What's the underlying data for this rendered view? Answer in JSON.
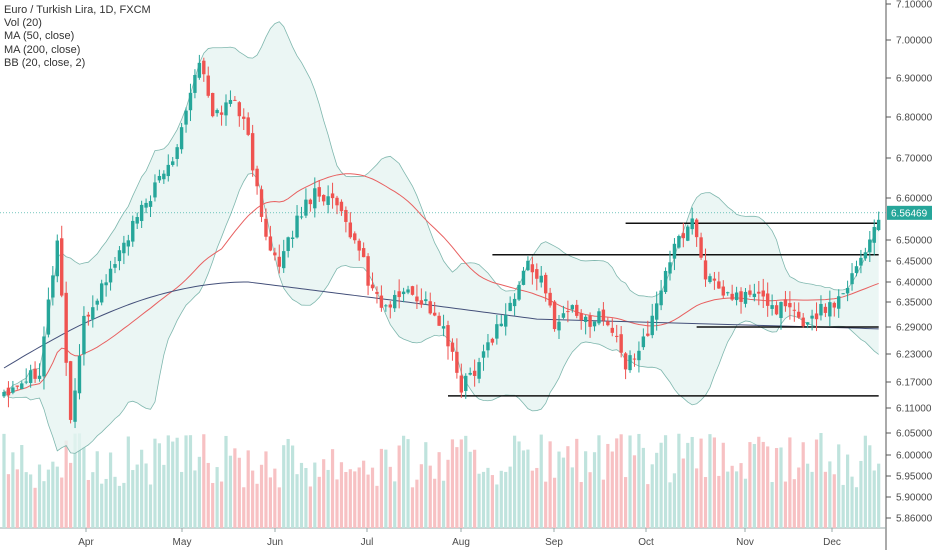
{
  "chart_data": {
    "type": "candlestick",
    "title": "Euro / Turkish Lira, 1D, FXCM",
    "indicators": [
      "Vol (20)",
      "MA (50, close)",
      "MA (200, close)",
      "BB (20, close, 2)"
    ],
    "y_ticks": [
      "7.10000",
      "7.00000",
      "6.90000",
      "6.80000",
      "6.70000",
      "6.60000",
      "6.50000",
      "6.45000",
      "6.40000",
      "6.35000",
      "6.29000",
      "6.23000",
      "6.17000",
      "6.11000",
      "6.05000",
      "6.00000",
      "5.95000",
      "5.90000",
      "5.86000"
    ],
    "x_ticks": [
      "Apr",
      "May",
      "Jun",
      "Jul",
      "Aug",
      "Sep",
      "Oct",
      "Nov",
      "Dec"
    ],
    "last_price": "6.56469",
    "colors": {
      "up": "#26a69a",
      "down": "#ef5350",
      "bb_fill": "#e6f4f1",
      "ma50": "#e86060",
      "ma200": "#44507a",
      "vol_up": "#bfe3dd",
      "vol_down": "#f7c1c3"
    },
    "horizontal_levels": [
      {
        "price": 6.54,
        "from_day": 140,
        "to_day": 197
      },
      {
        "price": 6.465,
        "from_day": 110,
        "to_day": 197
      },
      {
        "price": 6.29,
        "from_day": 156,
        "to_day": 197
      },
      {
        "price": 6.138,
        "from_day": 100,
        "to_day": 197
      }
    ],
    "anchors": [
      [
        0,
        6.15
      ],
      [
        8,
        6.2
      ],
      [
        12,
        6.5
      ],
      [
        15,
        6.08
      ],
      [
        18,
        6.3
      ],
      [
        25,
        6.45
      ],
      [
        30,
        6.55
      ],
      [
        38,
        6.7
      ],
      [
        44,
        6.95
      ],
      [
        47,
        6.8
      ],
      [
        52,
        6.85
      ],
      [
        55,
        6.75
      ],
      [
        58,
        6.55
      ],
      [
        62,
        6.43
      ],
      [
        66,
        6.55
      ],
      [
        70,
        6.62
      ],
      [
        75,
        6.58
      ],
      [
        78,
        6.5
      ],
      [
        80,
        6.49
      ],
      [
        82,
        6.4
      ],
      [
        86,
        6.33
      ],
      [
        90,
        6.38
      ],
      [
        95,
        6.35
      ],
      [
        99,
        6.28
      ],
      [
        103,
        6.16
      ],
      [
        106,
        6.2
      ],
      [
        110,
        6.27
      ],
      [
        115,
        6.36
      ],
      [
        118,
        6.45
      ],
      [
        121,
        6.4
      ],
      [
        124,
        6.3
      ],
      [
        128,
        6.34
      ],
      [
        131,
        6.3
      ],
      [
        134,
        6.32
      ],
      [
        137,
        6.28
      ],
      [
        140,
        6.2
      ],
      [
        143,
        6.25
      ],
      [
        146,
        6.3
      ],
      [
        149,
        6.43
      ],
      [
        152,
        6.5
      ],
      [
        155,
        6.55
      ],
      [
        158,
        6.42
      ],
      [
        161,
        6.37
      ],
      [
        165,
        6.36
      ],
      [
        169,
        6.37
      ],
      [
        173,
        6.34
      ],
      [
        177,
        6.33
      ],
      [
        180,
        6.3
      ],
      [
        184,
        6.33
      ],
      [
        188,
        6.36
      ],
      [
        192,
        6.44
      ],
      [
        195,
        6.5
      ],
      [
        197,
        6.56
      ]
    ]
  }
}
